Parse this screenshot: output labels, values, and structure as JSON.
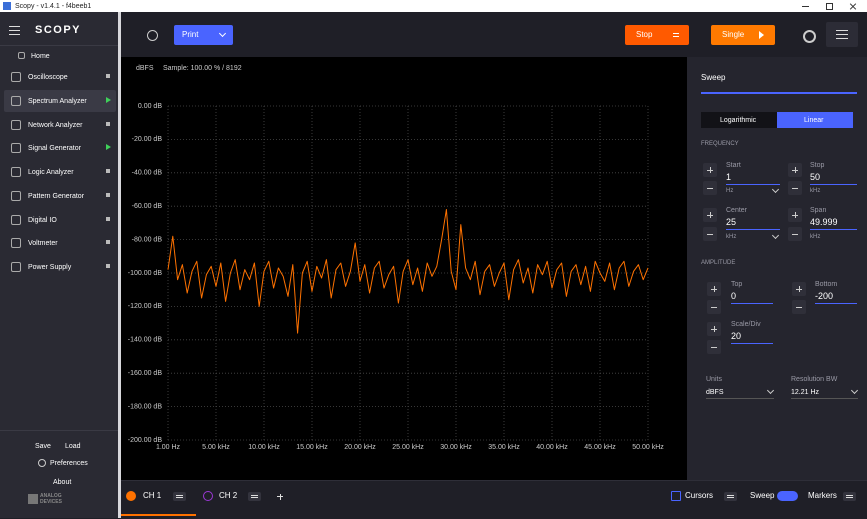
{
  "window": {
    "title": "Scopy - v1.4.1 - f4beeb1"
  },
  "sidebar": {
    "logo": "SCOPY",
    "home": "Home",
    "tools": [
      "Oscilloscope",
      "Spectrum Analyzer",
      "Network Analyzer",
      "Signal Generator",
      "Logic Analyzer",
      "Pattern Generator",
      "Digital IO",
      "Voltmeter",
      "Power Supply"
    ],
    "save": "Save",
    "load": "Load",
    "preferences": "Preferences",
    "about": "About",
    "brand": [
      "ANALOG",
      "DEVICES"
    ]
  },
  "toolbar": {
    "print": "Print",
    "stop": "Stop",
    "single": "Single"
  },
  "settings": {
    "title": "Sweep",
    "scale_options": [
      "Logarithmic",
      "Linear"
    ],
    "frequency": {
      "heading": "FREQUENCY",
      "start": {
        "label": "Start",
        "value": "1",
        "unit": "Hz"
      },
      "stop": {
        "label": "Stop",
        "value": "50",
        "unit": "kHz"
      },
      "center": {
        "label": "Center",
        "value": "25",
        "unit": "kHz"
      },
      "span": {
        "label": "Span",
        "value": "49.999",
        "unit": "kHz"
      }
    },
    "amplitude": {
      "heading": "AMPLITUDE",
      "top": {
        "label": "Top",
        "value": "0"
      },
      "bottom": {
        "label": "Bottom",
        "value": "-200"
      },
      "scale_div": {
        "label": "Scale/Div",
        "value": "20"
      }
    },
    "units": {
      "label": "Units",
      "value": "dBFS"
    },
    "rbw": {
      "label": "Resolution BW",
      "value": "12.21 Hz"
    }
  },
  "bottom_bar": {
    "ch2": "CH 2",
    "cursors": "Cursors",
    "sweep": "Sweep",
    "markers": "Markers"
  },
  "chart_data": {
    "type": "line",
    "ylabel": "dBFS",
    "subtitle": "Sample: 100.00 % / 8192",
    "xlim": [
      1,
      50000
    ],
    "ylim": [
      -200,
      0
    ],
    "grid": true,
    "xticks": [
      {
        "value": 1,
        "label": "1.00 Hz"
      },
      {
        "value": 5000,
        "label": "5.00 kHz"
      },
      {
        "value": 10000,
        "label": "10.00 kHz"
      },
      {
        "value": 15000,
        "label": "15.00 kHz"
      },
      {
        "value": 20000,
        "label": "20.00 kHz"
      },
      {
        "value": 25000,
        "label": "25.00 kHz"
      },
      {
        "value": 30000,
        "label": "30.00 kHz"
      },
      {
        "value": 35000,
        "label": "35.00 kHz"
      },
      {
        "value": 40000,
        "label": "40.00 kHz"
      },
      {
        "value": 45000,
        "label": "45.00 kHz"
      },
      {
        "value": 50000,
        "label": "50.00 kHz"
      }
    ],
    "yticks": [
      {
        "value": 0,
        "label": "0.00 dB"
      },
      {
        "value": -20,
        "label": "-20.00 dB"
      },
      {
        "value": -40,
        "label": "-40.00 dB"
      },
      {
        "value": -60,
        "label": "-60.00 dB"
      },
      {
        "value": -80,
        "label": "-80.00 dB"
      },
      {
        "value": -100,
        "label": "-100.00 dB"
      },
      {
        "value": -120,
        "label": "-120.00 dB"
      },
      {
        "value": -140,
        "label": "-140.00 dB"
      },
      {
        "value": -160,
        "label": "-160.00 dB"
      },
      {
        "value": -180,
        "label": "-180.00 dB"
      },
      {
        "value": -200,
        "label": "-200.00 dB"
      }
    ],
    "x": [
      1,
      500,
      1000,
      1500,
      2000,
      2500,
      3000,
      3500,
      4000,
      4500,
      5000,
      5500,
      6000,
      6500,
      7000,
      7500,
      8000,
      8500,
      9000,
      9500,
      10000,
      10500,
      11000,
      11500,
      12000,
      12500,
      13000,
      13500,
      14000,
      14500,
      15000,
      15500,
      16000,
      16500,
      17000,
      17500,
      18000,
      18500,
      19000,
      19500,
      20000,
      20500,
      21000,
      21500,
      22000,
      22500,
      23000,
      23500,
      24000,
      24500,
      25000,
      25500,
      26000,
      26500,
      27000,
      27500,
      28000,
      28500,
      29000,
      29500,
      30000,
      30500,
      31000,
      31500,
      32000,
      32500,
      33000,
      33500,
      34000,
      34500,
      35000,
      35500,
      36000,
      36500,
      37000,
      37500,
      38000,
      38500,
      39000,
      39500,
      40000,
      40500,
      41000,
      41500,
      42000,
      42500,
      43000,
      43500,
      44000,
      44500,
      45000,
      45500,
      46000,
      46500,
      47000,
      47500,
      48000,
      48500,
      49000,
      49500,
      50000
    ],
    "series": [
      {
        "name": "CH 1",
        "color": "#ff7200",
        "values": [
          -98,
          -78,
          -104,
          -95,
          -112,
          -99,
          -93,
          -115,
          -101,
          -96,
          -108,
          -94,
          -117,
          -100,
          -92,
          -110,
          -98,
          -104,
          -94,
          -120,
          -99,
          -93,
          -109,
          -97,
          -102,
          -114,
          -95,
          -136,
          -100,
          -93,
          -111,
          -96,
          -103,
          -92,
          -115,
          -98,
          -94,
          -108,
          -99,
          -82,
          -105,
          -95,
          -112,
          -97,
          -93,
          -109,
          -101,
          -96,
          -118,
          -99,
          -92,
          -107,
          -97,
          -111,
          -94,
          -102,
          -96,
          -80,
          -62,
          -99,
          -110,
          -71,
          -97,
          -104,
          -93,
          -113,
          -99,
          -95,
          -108,
          -100,
          -94,
          -116,
          -98,
          -92,
          -106,
          -97,
          -112,
          -95,
          -101,
          -93,
          -109,
          -98,
          -94,
          -114,
          -99,
          -95,
          -107,
          -96,
          -111,
          -93,
          -100,
          -105,
          -94,
          -110,
          -97,
          -93,
          -108,
          -99,
          -95,
          -104,
          -97
        ]
      }
    ]
  }
}
